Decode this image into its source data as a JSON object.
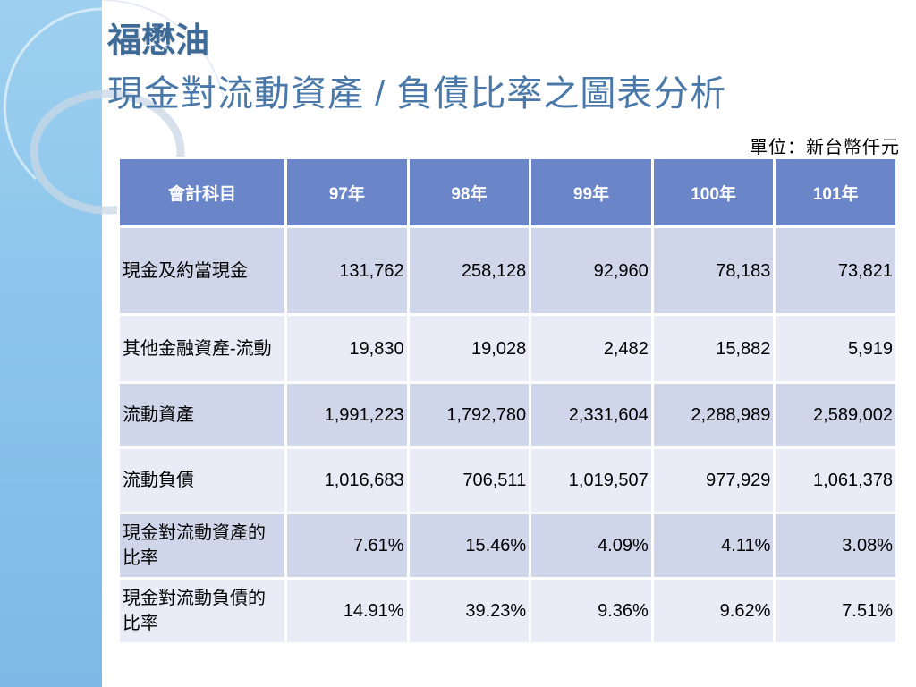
{
  "title": "福懋油",
  "subtitle": "現金對流動資產 / 負債比率之圖表分析",
  "unit_note": "單位：新台幣仟元",
  "table": {
    "headers": [
      "會計科目",
      "97年",
      "98年",
      "99年",
      "100年",
      "101年"
    ],
    "rows": [
      {
        "label": "現金及約當現金",
        "values": [
          "131,762",
          "258,128",
          "92,960",
          "78,183",
          "73,821"
        ]
      },
      {
        "label": "其他金融資產-流動",
        "values": [
          "19,830",
          "19,028",
          "2,482",
          "15,882",
          "5,919"
        ]
      },
      {
        "label": "流動資產",
        "values": [
          "1,991,223",
          "1,792,780",
          "2,331,604",
          "2,288,989",
          "2,589,002"
        ]
      },
      {
        "label": "流動負債",
        "values": [
          "1,016,683",
          "706,511",
          "1,019,507",
          "977,929",
          "1,061,378"
        ]
      },
      {
        "label": "現金對流動資產的比率",
        "values": [
          "7.61%",
          "15.46%",
          "4.09%",
          "4.11%",
          "3.08%"
        ]
      },
      {
        "label": "現金對流動負債的比率",
        "values": [
          "14.91%",
          "39.23%",
          "9.36%",
          "9.62%",
          "7.51%"
        ]
      }
    ]
  },
  "colors": {
    "header_bg": "#6b86c8",
    "row_odd": "#d0d6ea",
    "row_even": "#e9ecf6",
    "title": "#3d6a96",
    "side_band": "#8cc6ec"
  }
}
